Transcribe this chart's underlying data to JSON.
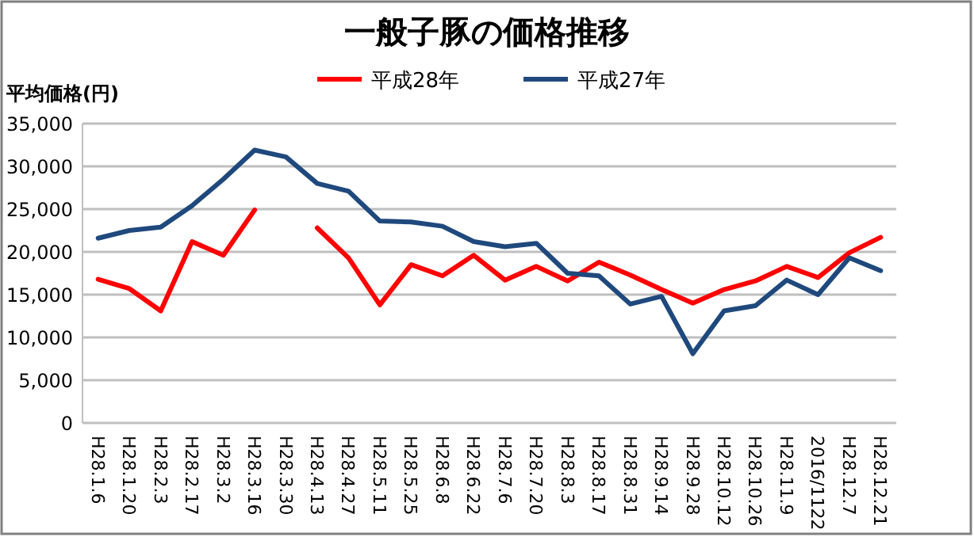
{
  "chart_data": {
    "type": "line",
    "title": "一般子豚の価格推移",
    "ylabel": "平均価格(円)",
    "categories": [
      "H28.1.6",
      "H28.1.20",
      "H28.2.3",
      "H28.2.17",
      "H28.3.2",
      "H28.3.16",
      "H28.3.30",
      "H28.4.13",
      "H28.4.27",
      "H28.5.11",
      "H28.5.25",
      "H28.6.8",
      "H28.6.22",
      "H28.7.6",
      "H28.7.20",
      "H28.8.3",
      "H28.8.17",
      "H28.8.31",
      "H28.9.14",
      "H28.9.28",
      "H28.10.12",
      "H28.10.26",
      "H28.11.9",
      "2016/1122",
      "H28.12.7",
      "H28.12.21"
    ],
    "series": [
      {
        "name": "平成28年",
        "color": "#ff0000",
        "values": [
          16800,
          15700,
          13100,
          21200,
          19600,
          24900,
          null,
          22800,
          19300,
          13800,
          18500,
          17200,
          19600,
          16700,
          18300,
          16600,
          18800,
          17300,
          15600,
          14000,
          15600,
          16600,
          18300,
          17000,
          19900,
          21700
        ]
      },
      {
        "name": "平成27年",
        "color": "#1f497d",
        "values": [
          21600,
          22500,
          22900,
          25400,
          28500,
          31900,
          31100,
          28000,
          27100,
          23600,
          23500,
          23000,
          21200,
          20600,
          21000,
          17500,
          17200,
          13900,
          14800,
          8100,
          13100,
          13700,
          16700,
          15000,
          19300,
          17800
        ]
      }
    ],
    "ylim": [
      0,
      35000
    ],
    "yticks": [
      {
        "value": 0,
        "label": "0"
      },
      {
        "value": 5000,
        "label": "5,000"
      },
      {
        "value": 10000,
        "label": "10,000"
      },
      {
        "value": 15000,
        "label": "15,000"
      },
      {
        "value": 20000,
        "label": "20,000"
      },
      {
        "value": 25000,
        "label": "25,000"
      },
      {
        "value": 30000,
        "label": "30,000"
      },
      {
        "value": 35000,
        "label": "35,000"
      }
    ],
    "grid": "y",
    "legend": "top",
    "marker": "none",
    "line_style": "solid"
  }
}
